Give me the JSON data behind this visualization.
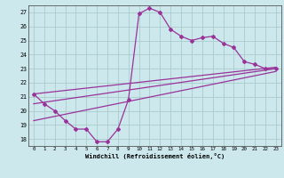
{
  "xlabel": "Windchill (Refroidissement éolien,°C)",
  "bg_color": "#cce8ec",
  "grid_color": "#aacccc",
  "line_color": "#993399",
  "xlim": [
    -0.5,
    23.5
  ],
  "ylim": [
    17.5,
    27.5
  ],
  "yticks": [
    18,
    19,
    20,
    21,
    22,
    23,
    24,
    25,
    26,
    27
  ],
  "xticks": [
    0,
    1,
    2,
    3,
    4,
    5,
    6,
    7,
    8,
    9,
    10,
    11,
    12,
    13,
    14,
    15,
    16,
    17,
    18,
    19,
    20,
    21,
    22,
    23
  ],
  "curve1_x": [
    0,
    1,
    2,
    3,
    4,
    5,
    6,
    7,
    8,
    9,
    10,
    11,
    12,
    13,
    14,
    15,
    16,
    17,
    18,
    19,
    20,
    21,
    22,
    23
  ],
  "curve1_y": [
    21.2,
    20.5,
    20.0,
    19.3,
    18.7,
    18.7,
    17.8,
    17.8,
    18.7,
    20.8,
    26.9,
    27.3,
    27.0,
    25.8,
    25.3,
    25.0,
    25.2,
    25.3,
    24.8,
    24.5,
    23.5,
    23.3,
    23.0,
    23.0
  ],
  "curve2_x": [
    0,
    23
  ],
  "curve2_y": [
    21.2,
    23.1
  ],
  "curve3_x": [
    0,
    23
  ],
  "curve3_y": [
    20.5,
    23.0
  ],
  "curve4_x": [
    0,
    23
  ],
  "curve4_y": [
    19.3,
    22.8
  ]
}
